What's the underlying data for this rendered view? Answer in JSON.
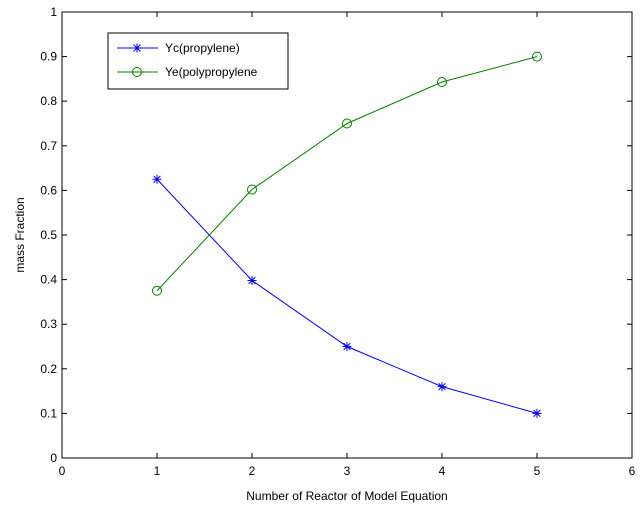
{
  "chart_data": {
    "type": "line",
    "xlabel": "Number of Reactor of Model Equation",
    "ylabel": "mass Fraction",
    "xlim": [
      0,
      6
    ],
    "ylim": [
      0,
      1
    ],
    "xticks": [
      "0",
      "1",
      "2",
      "3",
      "4",
      "5",
      "6"
    ],
    "yticks": [
      "0",
      "0.1",
      "0.2",
      "0.3",
      "0.4",
      "0.5",
      "0.6",
      "0.7",
      "0.8",
      "0.9",
      "1"
    ],
    "grid": false,
    "legend_position": "top-left",
    "x": [
      1,
      2,
      3,
      4,
      5
    ],
    "series": [
      {
        "name": "Yc(propylene)",
        "color": "#0000ff",
        "marker": "asterisk",
        "values": [
          0.625,
          0.398,
          0.25,
          0.16,
          0.1
        ]
      },
      {
        "name": "Ye(polypropylene",
        "color": "#008000",
        "marker": "circle",
        "values": [
          0.375,
          0.602,
          0.75,
          0.843,
          0.9
        ]
      }
    ]
  }
}
